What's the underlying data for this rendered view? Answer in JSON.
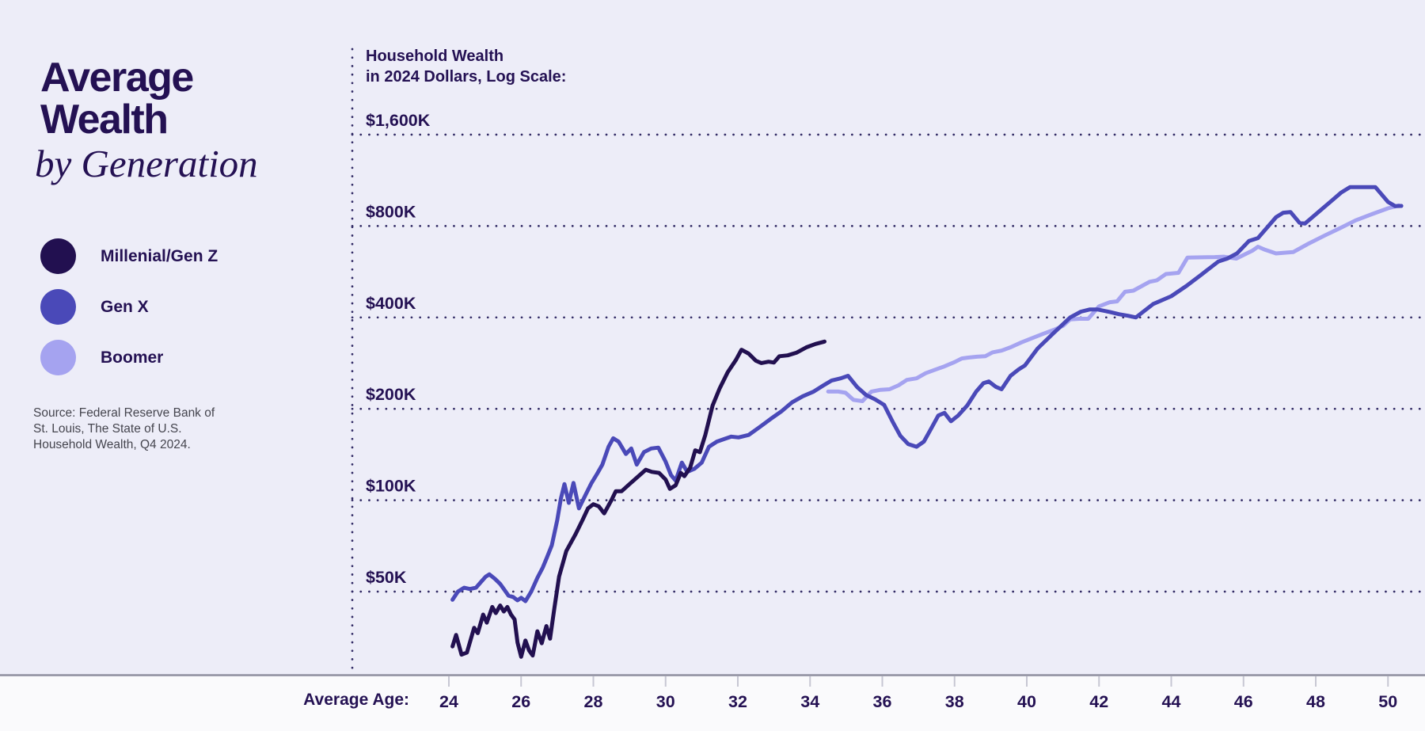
{
  "title": {
    "line1": "Average",
    "line2": "Wealth",
    "line3": "by Generation"
  },
  "legend": [
    {
      "label": "Millenial/Gen Z",
      "color": "#221050"
    },
    {
      "label": "Gen X",
      "color": "#4A49B8"
    },
    {
      "label": "Boomer",
      "color": "#A5A3F0"
    }
  ],
  "source_lines": [
    "Source: Federal Reserve Bank of",
    "St. Louis, The State of U.S.",
    "Household Wealth, Q4 2024."
  ],
  "colors": {
    "background": "#EDEDF8",
    "footer_background": "#FAFAFC",
    "ink": "#241153",
    "grid_dot": "#332C66",
    "axis_line": "#8E8E9E",
    "tick_mark": "#C7C7D3",
    "source_text": "#45454E"
  },
  "chart_data": {
    "type": "line",
    "title_lines": [
      "Household Wealth",
      "in 2024 Dollars, Log Scale:"
    ],
    "y_axis": {
      "scale": "log2",
      "unit": "thousand 2024 USD",
      "ticks": [
        {
          "label": "$1,600K",
          "value": 1600
        },
        {
          "label": "$800K",
          "value": 800
        },
        {
          "label": "$400K",
          "value": 400
        },
        {
          "label": "$200K",
          "value": 200
        },
        {
          "label": "$100K",
          "value": 100
        },
        {
          "label": "$50K",
          "value": 50
        }
      ]
    },
    "x_axis": {
      "label": "Average Age:",
      "ticks": [
        24,
        26,
        28,
        30,
        32,
        34,
        36,
        38,
        40,
        42,
        44,
        46,
        48,
        50
      ],
      "range": [
        23.5,
        51.0
      ]
    },
    "grid": "dotted horizontal lines at each y tick, dotted vertical axis line",
    "legend_position": "left panel",
    "series": [
      {
        "name": "Boomer",
        "color": "#A5A3F0",
        "points": [
          [
            34.5,
            228
          ],
          [
            34.78,
            228
          ],
          [
            34.98,
            226
          ],
          [
            35.2,
            214
          ],
          [
            35.45,
            212
          ],
          [
            35.7,
            228
          ],
          [
            35.95,
            231
          ],
          [
            36.2,
            232
          ],
          [
            36.45,
            239
          ],
          [
            36.68,
            249
          ],
          [
            36.95,
            252
          ],
          [
            37.2,
            262
          ],
          [
            37.5,
            270
          ],
          [
            37.72,
            276
          ],
          [
            38.0,
            285
          ],
          [
            38.2,
            293
          ],
          [
            38.38,
            295
          ],
          [
            38.62,
            297
          ],
          [
            38.85,
            298
          ],
          [
            39.05,
            307
          ],
          [
            39.3,
            311
          ],
          [
            39.55,
            319
          ],
          [
            39.85,
            331
          ],
          [
            40.15,
            342
          ],
          [
            40.45,
            353
          ],
          [
            40.75,
            364
          ],
          [
            41.0,
            375
          ],
          [
            41.2,
            394
          ],
          [
            41.45,
            396
          ],
          [
            41.7,
            396
          ],
          [
            42.0,
            435
          ],
          [
            42.3,
            449
          ],
          [
            42.5,
            452
          ],
          [
            42.72,
            486
          ],
          [
            42.95,
            490
          ],
          [
            43.4,
            524
          ],
          [
            43.6,
            530
          ],
          [
            43.85,
            556
          ],
          [
            44.2,
            561
          ],
          [
            44.45,
            630
          ],
          [
            45.2,
            632
          ],
          [
            45.45,
            634
          ],
          [
            45.8,
            625
          ],
          [
            46.25,
            664
          ],
          [
            46.4,
            684
          ],
          [
            46.6,
            668
          ],
          [
            46.9,
            650
          ],
          [
            47.2,
            654
          ],
          [
            47.38,
            657
          ],
          [
            47.8,
            700
          ],
          [
            48.25,
            745
          ],
          [
            48.7,
            790
          ],
          [
            49.1,
            835
          ],
          [
            49.55,
            875
          ],
          [
            50.0,
            915
          ],
          [
            50.3,
            935
          ]
        ]
      },
      {
        "name": "Gen X",
        "color": "#4A49B8",
        "points": [
          [
            24.1,
            47
          ],
          [
            24.25,
            50
          ],
          [
            24.42,
            51.5
          ],
          [
            24.58,
            51
          ],
          [
            24.75,
            51.5
          ],
          [
            24.9,
            54
          ],
          [
            25.02,
            56
          ],
          [
            25.12,
            57
          ],
          [
            25.28,
            55
          ],
          [
            25.42,
            53
          ],
          [
            25.52,
            51
          ],
          [
            25.65,
            48.5
          ],
          [
            25.78,
            48
          ],
          [
            25.9,
            46.8
          ],
          [
            26.0,
            47.7
          ],
          [
            26.12,
            46.5
          ],
          [
            26.28,
            50
          ],
          [
            26.45,
            55.5
          ],
          [
            26.6,
            60
          ],
          [
            26.72,
            65
          ],
          [
            26.85,
            71
          ],
          [
            27.0,
            86
          ],
          [
            27.1,
            101
          ],
          [
            27.2,
            113
          ],
          [
            27.32,
            98
          ],
          [
            27.45,
            114
          ],
          [
            27.6,
            94
          ],
          [
            27.78,
            104
          ],
          [
            27.95,
            114
          ],
          [
            28.1,
            122
          ],
          [
            28.25,
            131
          ],
          [
            28.42,
            150
          ],
          [
            28.55,
            160
          ],
          [
            28.7,
            156
          ],
          [
            28.9,
            142
          ],
          [
            29.05,
            148
          ],
          [
            29.2,
            131
          ],
          [
            29.4,
            144
          ],
          [
            29.6,
            148
          ],
          [
            29.8,
            149
          ],
          [
            30.0,
            134
          ],
          [
            30.15,
            121
          ],
          [
            30.28,
            116
          ],
          [
            30.45,
            133
          ],
          [
            30.6,
            124
          ],
          [
            30.8,
            127
          ],
          [
            31.0,
            133
          ],
          [
            31.2,
            150
          ],
          [
            31.42,
            156
          ],
          [
            31.62,
            159
          ],
          [
            31.82,
            162
          ],
          [
            32.02,
            161
          ],
          [
            32.3,
            164
          ],
          [
            32.6,
            174
          ],
          [
            32.9,
            185
          ],
          [
            33.2,
            196
          ],
          [
            33.5,
            210
          ],
          [
            33.8,
            220
          ],
          [
            34.1,
            228
          ],
          [
            34.4,
            240
          ],
          [
            34.6,
            248
          ],
          [
            34.85,
            252
          ],
          [
            35.05,
            257
          ],
          [
            35.3,
            236
          ],
          [
            35.55,
            222
          ],
          [
            35.8,
            215
          ],
          [
            36.05,
            206
          ],
          [
            36.3,
            180
          ],
          [
            36.5,
            163
          ],
          [
            36.72,
            153
          ],
          [
            36.95,
            150
          ],
          [
            37.15,
            156
          ],
          [
            37.35,
            172
          ],
          [
            37.55,
            190
          ],
          [
            37.72,
            194
          ],
          [
            37.9,
            182
          ],
          [
            38.1,
            190
          ],
          [
            38.35,
            205
          ],
          [
            38.6,
            228
          ],
          [
            38.8,
            243
          ],
          [
            38.95,
            246
          ],
          [
            39.15,
            236
          ],
          [
            39.3,
            232
          ],
          [
            39.55,
            257
          ],
          [
            39.78,
            270
          ],
          [
            39.95,
            278
          ],
          [
            40.3,
            316
          ],
          [
            40.75,
            356
          ],
          [
            41.2,
            400
          ],
          [
            41.5,
            418
          ],
          [
            41.75,
            425
          ],
          [
            41.95,
            425
          ],
          [
            42.3,
            417
          ],
          [
            42.55,
            410
          ],
          [
            42.8,
            405
          ],
          [
            43.02,
            400
          ],
          [
            43.5,
            443
          ],
          [
            44.0,
            470
          ],
          [
            44.42,
            508
          ],
          [
            44.82,
            552
          ],
          [
            45.3,
            611
          ],
          [
            45.55,
            625
          ],
          [
            45.82,
            650
          ],
          [
            46.15,
            714
          ],
          [
            46.4,
            730
          ],
          [
            46.9,
            855
          ],
          [
            47.1,
            885
          ],
          [
            47.3,
            890
          ],
          [
            47.55,
            820
          ],
          [
            47.7,
            815
          ],
          [
            48.1,
            895
          ],
          [
            48.4,
            960
          ],
          [
            48.7,
            1030
          ],
          [
            48.95,
            1075
          ],
          [
            49.65,
            1075
          ],
          [
            50.0,
            960
          ],
          [
            50.2,
            930
          ],
          [
            50.37,
            932
          ]
        ]
      },
      {
        "name": "Millenial/Gen Z",
        "color": "#221050",
        "points": [
          [
            24.1,
            33
          ],
          [
            24.2,
            36
          ],
          [
            24.35,
            31
          ],
          [
            24.5,
            31.5
          ],
          [
            24.7,
            38
          ],
          [
            24.8,
            36.5
          ],
          [
            24.95,
            42
          ],
          [
            25.05,
            39.5
          ],
          [
            25.2,
            44.5
          ],
          [
            25.3,
            42.5
          ],
          [
            25.42,
            45
          ],
          [
            25.52,
            43
          ],
          [
            25.62,
            44.5
          ],
          [
            25.72,
            42
          ],
          [
            25.82,
            40.5
          ],
          [
            25.9,
            34
          ],
          [
            26.0,
            30.5
          ],
          [
            26.12,
            34.5
          ],
          [
            26.22,
            32
          ],
          [
            26.32,
            30.8
          ],
          [
            26.45,
            37
          ],
          [
            26.57,
            33.8
          ],
          [
            26.7,
            38.5
          ],
          [
            26.8,
            35
          ],
          [
            26.92,
            44
          ],
          [
            27.05,
            56
          ],
          [
            27.25,
            68
          ],
          [
            27.5,
            77
          ],
          [
            27.7,
            86
          ],
          [
            27.85,
            94
          ],
          [
            28.0,
            97
          ],
          [
            28.15,
            95.5
          ],
          [
            28.3,
            90.5
          ],
          [
            28.5,
            100
          ],
          [
            28.62,
            107
          ],
          [
            28.78,
            107
          ],
          [
            29.0,
            113
          ],
          [
            29.25,
            120
          ],
          [
            29.45,
            126
          ],
          [
            29.62,
            124
          ],
          [
            29.82,
            123
          ],
          [
            30.0,
            117
          ],
          [
            30.12,
            109
          ],
          [
            30.28,
            112
          ],
          [
            30.42,
            123
          ],
          [
            30.52,
            120
          ],
          [
            30.68,
            128
          ],
          [
            30.82,
            146
          ],
          [
            30.95,
            144
          ],
          [
            31.1,
            164
          ],
          [
            31.3,
            205
          ],
          [
            31.5,
            234
          ],
          [
            31.72,
            264
          ],
          [
            31.95,
            290
          ],
          [
            32.1,
            313
          ],
          [
            32.3,
            304
          ],
          [
            32.5,
            288
          ],
          [
            32.65,
            283
          ],
          [
            32.85,
            286
          ],
          [
            33.0,
            284
          ],
          [
            33.15,
            298
          ],
          [
            33.38,
            300
          ],
          [
            33.62,
            306
          ],
          [
            33.9,
            319
          ],
          [
            34.15,
            327
          ],
          [
            34.4,
            333
          ]
        ]
      }
    ]
  }
}
